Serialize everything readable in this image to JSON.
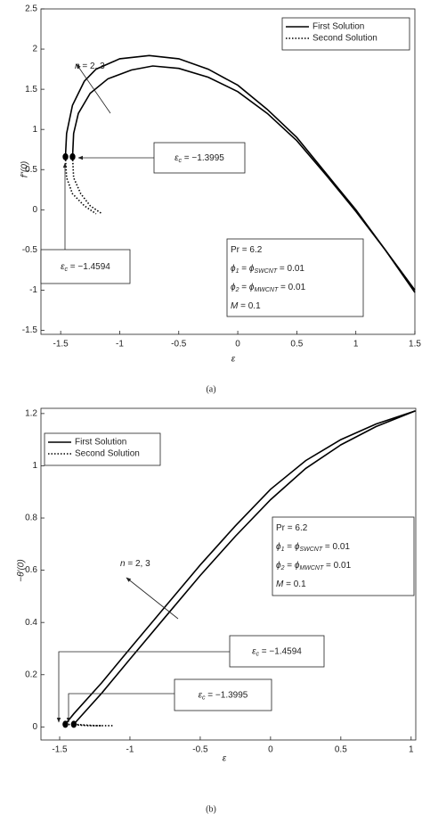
{
  "chart_data": [
    {
      "type": "line",
      "panel_label": "(a)",
      "x_label": "ε",
      "y_label": "f″(0)",
      "xlim": [
        -1.667,
        1.5
      ],
      "xticks": [
        -1.5,
        -1,
        -0.5,
        0,
        0.5,
        1,
        1.5
      ],
      "ylim": [
        -1.55,
        2.5
      ],
      "yticks": [
        -1.5,
        -1,
        -0.5,
        0,
        0.5,
        1,
        1.5,
        2,
        2.5
      ],
      "series": [
        {
          "name": "First Solution",
          "color": "#000000",
          "dash": "solid",
          "curves": [
            {
              "x": [
                -1.4594,
                -1.45,
                -1.4,
                -1.3,
                -1.2,
                -1.0,
                -0.75,
                -0.5,
                -0.25,
                0,
                0.25,
                0.5,
                0.75,
                1.0,
                1.25,
                1.5
              ],
              "values": [
                0.66,
                0.95,
                1.3,
                1.6,
                1.75,
                1.88,
                1.92,
                1.88,
                1.75,
                1.55,
                1.25,
                0.9,
                0.45,
                0.0,
                -0.5,
                -1.03
              ]
            },
            {
              "x": [
                -1.3995,
                -1.39,
                -1.35,
                -1.25,
                -1.1,
                -0.9,
                -0.72,
                -0.5,
                -0.25,
                0,
                0.25,
                0.5,
                0.75,
                1.0,
                1.25,
                1.5
              ],
              "values": [
                0.66,
                0.95,
                1.2,
                1.45,
                1.63,
                1.74,
                1.79,
                1.76,
                1.65,
                1.47,
                1.2,
                0.86,
                0.43,
                -0.02,
                -0.5,
                -1.0
              ]
            }
          ]
        },
        {
          "name": "Second Solution",
          "color": "#000000",
          "dash": "dotted",
          "curves": [
            {
              "x": [
                -1.4594,
                -1.45,
                -1.4,
                -1.3,
                -1.2
              ],
              "values": [
                0.66,
                0.4,
                0.2,
                0.05,
                -0.05
              ]
            },
            {
              "x": [
                -1.3995,
                -1.39,
                -1.33,
                -1.25,
                -1.15
              ],
              "values": [
                0.66,
                0.4,
                0.2,
                0.05,
                -0.05
              ]
            }
          ]
        }
      ],
      "critical_points": {
        "x": [
          -1.4594,
          -1.3995
        ],
        "values": [
          0.66,
          0.66
        ]
      },
      "n_label": [
        {
          "text": "n",
          "italic": true
        },
        {
          "text": " = 2, 3"
        }
      ],
      "critical_labels": [
        [
          {
            "text": "ε",
            "italic": true
          },
          {
            "text": "c",
            "sub": true,
            "italic": true
          },
          {
            "text": " = −1.3995"
          }
        ],
        [
          {
            "text": "ε",
            "italic": true
          },
          {
            "text": "c",
            "sub": true,
            "italic": true
          },
          {
            "text": " = −1.4594"
          }
        ]
      ],
      "parameters": [
        [
          {
            "text": "Pr  = 6.2"
          }
        ],
        [
          {
            "text": "ϕ",
            "italic": true
          },
          {
            "text": "1",
            "sub": true,
            "italic": true
          },
          {
            "text": " = "
          },
          {
            "text": "ϕ",
            "italic": true
          },
          {
            "text": "SWCNT",
            "sub": true,
            "italic": true
          },
          {
            "text": " = 0.01"
          }
        ],
        [
          {
            "text": "ϕ",
            "italic": true
          },
          {
            "text": "2",
            "sub": true,
            "italic": true
          },
          {
            "text": " = "
          },
          {
            "text": "ϕ",
            "italic": true
          },
          {
            "text": "MWCNT",
            "sub": true,
            "italic": true
          },
          {
            "text": " = 0.01"
          }
        ],
        [
          {
            "text": "M",
            "italic": true
          },
          {
            "text": " = 0.1"
          }
        ]
      ]
    },
    {
      "type": "line",
      "panel_label": "(b)",
      "x_label": "ε",
      "y_label": "−θ′(0)",
      "xlim": [
        -1.633,
        1.033
      ],
      "xticks": [
        -1.5,
        -1,
        -0.5,
        0,
        0.5,
        1
      ],
      "ylim": [
        -0.05,
        1.22
      ],
      "yticks": [
        0,
        0.2,
        0.4,
        0.6,
        0.8,
        1,
        1.2
      ],
      "series": [
        {
          "name": "First Solution",
          "color": "#000000",
          "dash": "solid",
          "curves": [
            {
              "x": [
                -1.4594,
                -1.4,
                -1.2,
                -1.0,
                -0.75,
                -0.5,
                -0.25,
                0,
                0.25,
                0.5,
                0.75,
                1.03
              ],
              "values": [
                0.01,
                0.05,
                0.17,
                0.3,
                0.46,
                0.62,
                0.77,
                0.91,
                1.02,
                1.1,
                1.16,
                1.21
              ]
            },
            {
              "x": [
                -1.3995,
                -1.35,
                -1.2,
                -1.0,
                -0.75,
                -0.5,
                -0.25,
                0,
                0.25,
                0.5,
                0.75,
                1.03
              ],
              "values": [
                0.01,
                0.04,
                0.13,
                0.26,
                0.42,
                0.58,
                0.73,
                0.87,
                0.99,
                1.08,
                1.15,
                1.21
              ]
            }
          ]
        },
        {
          "name": "Second Solution",
          "color": "#000000",
          "dash": "dotted",
          "curves": [
            {
              "x": [
                -1.4594,
                -1.3,
                -1.2
              ],
              "values": [
                0.01,
                0.005,
                0.005
              ]
            },
            {
              "x": [
                -1.3995,
                -1.25,
                -1.12
              ],
              "values": [
                0.01,
                0.005,
                0.005
              ]
            }
          ]
        }
      ],
      "critical_points": {
        "x": [
          -1.4594,
          -1.3995
        ],
        "values": [
          0.01,
          0.01
        ]
      },
      "n_label": [
        {
          "text": "n",
          "italic": true
        },
        {
          "text": " = 2, 3"
        }
      ],
      "critical_labels": [
        [
          {
            "text": "ε",
            "italic": true
          },
          {
            "text": "c",
            "sub": true,
            "italic": true
          },
          {
            "text": " = −1.4594"
          }
        ],
        [
          {
            "text": "ε",
            "italic": true
          },
          {
            "text": "c",
            "sub": true,
            "italic": true
          },
          {
            "text": " = −1.3995"
          }
        ]
      ],
      "parameters": [
        [
          {
            "text": "Pr  = 6.2"
          }
        ],
        [
          {
            "text": "ϕ",
            "italic": true
          },
          {
            "text": "1",
            "sub": true,
            "italic": true
          },
          {
            "text": " = "
          },
          {
            "text": "ϕ",
            "italic": true
          },
          {
            "text": "SWCNT",
            "sub": true,
            "italic": true
          },
          {
            "text": " = 0.01"
          }
        ],
        [
          {
            "text": "ϕ",
            "italic": true
          },
          {
            "text": "2",
            "sub": true,
            "italic": true
          },
          {
            "text": " = "
          },
          {
            "text": "ϕ",
            "italic": true
          },
          {
            "text": "MWCNT",
            "sub": true,
            "italic": true
          },
          {
            "text": " = 0.01"
          }
        ],
        [
          {
            "text": "M",
            "italic": true
          },
          {
            "text": " = 0.1"
          }
        ]
      ]
    }
  ]
}
